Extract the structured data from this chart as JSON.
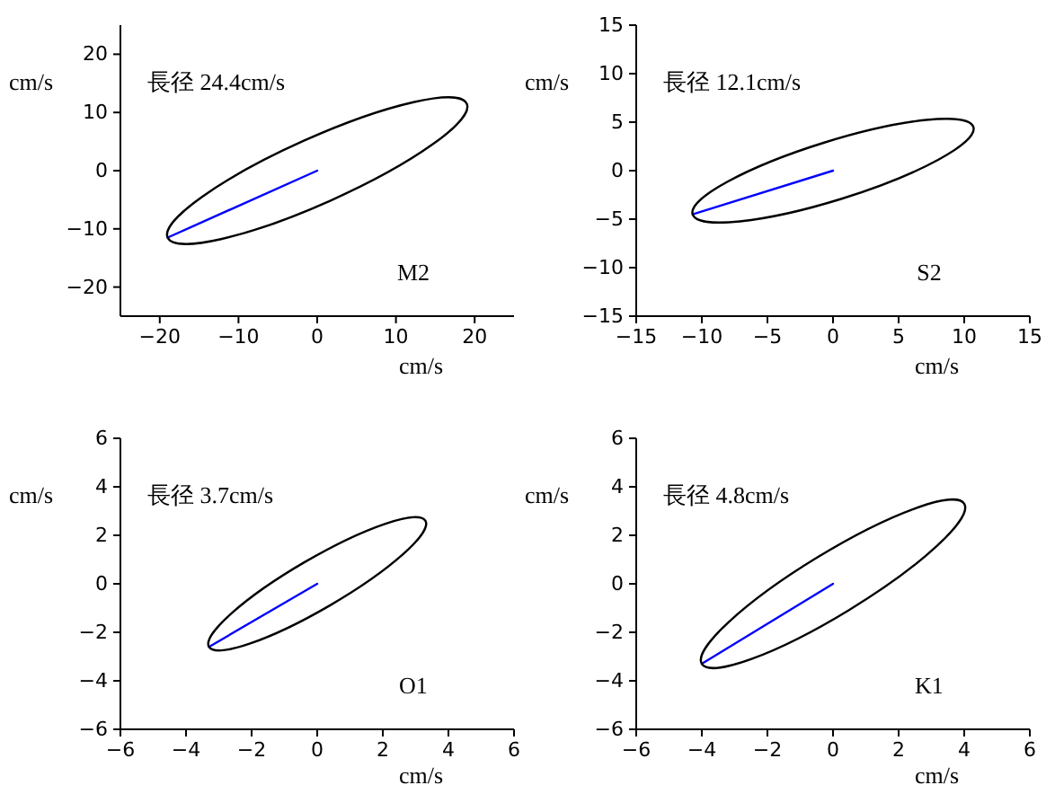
{
  "chart_data": [
    {
      "type": "line",
      "xlabel": "cm/s",
      "ylabel": "cm/s",
      "annotations": [
        "長径  24.4cm/s",
        "M2"
      ],
      "xlim": [
        -25,
        25
      ],
      "ylim": [
        -25,
        25
      ],
      "xticks": [
        {
          "value": -20,
          "label": "−20"
        },
        {
          "value": -10,
          "label": "−10"
        },
        0,
        10,
        20
      ],
      "yticks": [
        {
          "value": -20,
          "label": "−20"
        },
        {
          "value": -10,
          "label": "−10"
        },
        0,
        10,
        20
      ],
      "series": [
        {
          "color": "#0000ff",
          "x": [
            -19,
            0
          ],
          "values": [
            -11.5,
            0
          ]
        }
      ]
    },
    {
      "type": "line",
      "xlabel": "cm/s",
      "ylabel": "cm/s",
      "annotations": [
        "長径  12.1cm/s",
        "S2"
      ],
      "xlim": [
        -15,
        15
      ],
      "ylim": [
        -15,
        15
      ],
      "xticks": [
        {
          "value": -15,
          "label": "−15"
        },
        {
          "value": -10,
          "label": "−10"
        },
        {
          "value": -5,
          "label": "−5"
        },
        0,
        5,
        10,
        15
      ],
      "yticks": [
        {
          "value": -15,
          "label": "−15"
        },
        {
          "value": -10,
          "label": "−10"
        },
        {
          "value": -5,
          "label": "−5"
        },
        0,
        5,
        10,
        15
      ],
      "series": [
        {
          "color": "#0000ff",
          "x": [
            -10.7,
            0
          ],
          "values": [
            -4.5,
            0
          ]
        }
      ]
    },
    {
      "type": "line",
      "xlabel": "cm/s",
      "ylabel": "cm/s",
      "annotations": [
        "長径  3.7cm/s",
        "O1"
      ],
      "xlim": [
        -6,
        6
      ],
      "ylim": [
        -6,
        6
      ],
      "xticks": [
        {
          "value": -6,
          "label": "−6"
        },
        {
          "value": -4,
          "label": "−4"
        },
        {
          "value": -2,
          "label": "−2"
        },
        0,
        2,
        4,
        6
      ],
      "yticks": [
        {
          "value": -6,
          "label": "−6"
        },
        {
          "value": -4,
          "label": "−4"
        },
        {
          "value": -2,
          "label": "−2"
        },
        0,
        2,
        4,
        6
      ],
      "series": [
        {
          "color": "#0000ff",
          "x": [
            -3.3,
            0
          ],
          "values": [
            -2.6,
            0
          ]
        }
      ]
    },
    {
      "type": "line",
      "xlabel": "cm/s",
      "ylabel": "cm/s",
      "annotations": [
        "長径  4.8cm/s",
        "K1"
      ],
      "xlim": [
        -6,
        6
      ],
      "ylim": [
        -6,
        6
      ],
      "xticks": [
        {
          "value": -6,
          "label": "−6"
        },
        {
          "value": -4,
          "label": "−4"
        },
        {
          "value": -2,
          "label": "−2"
        },
        0,
        2,
        4,
        6
      ],
      "yticks": [
        {
          "value": -6,
          "label": "−6"
        },
        {
          "value": -4,
          "label": "−4"
        },
        {
          "value": -2,
          "label": "−2"
        },
        0,
        2,
        4,
        6
      ],
      "series": [
        {
          "color": "#0000ff",
          "x": [
            -4,
            0
          ],
          "values": [
            -3.3,
            0
          ]
        }
      ]
    }
  ]
}
